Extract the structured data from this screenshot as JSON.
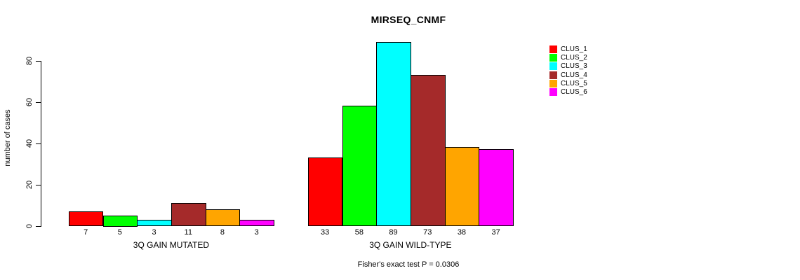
{
  "chart_data": {
    "type": "bar",
    "title": "MIRSEQ_CNMF",
    "xlabel": "",
    "ylabel": "number of cases",
    "ylim": [
      0,
      80
    ],
    "yticks": [
      0,
      20,
      40,
      60,
      80
    ],
    "grid": false,
    "legend_position": "right",
    "series_labels": [
      "CLUS_1",
      "CLUS_2",
      "CLUS_3",
      "CLUS_4",
      "CLUS_5",
      "CLUS_6"
    ],
    "colors": [
      "#FF0000",
      "#00FF00",
      "#00FFFF",
      "#A52A2A",
      "#FFA500",
      "#FF00FF"
    ],
    "groups": [
      {
        "label": "3Q GAIN MUTATED",
        "values": [
          7,
          5,
          3,
          11,
          8,
          3
        ]
      },
      {
        "label": "3Q GAIN WILD-TYPE",
        "values": [
          33,
          58,
          89,
          73,
          38,
          37
        ]
      }
    ],
    "bar_value_labels_shown": true,
    "annotation": "Fisher's exact test P = 0.0306"
  }
}
